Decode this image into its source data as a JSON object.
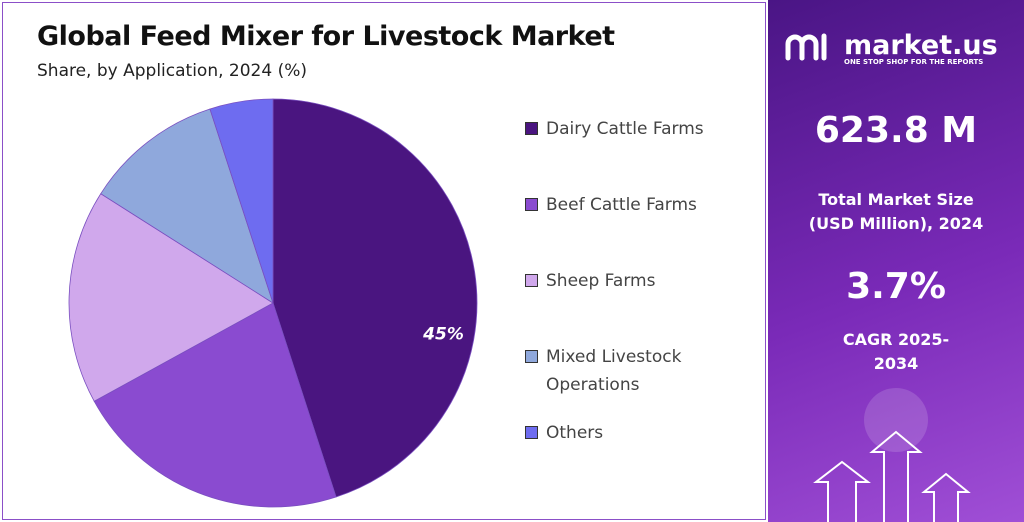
{
  "chart_data": {
    "type": "pie",
    "title": "Global Feed Mixer for Livestock Market",
    "subtitle": "Share, by Application, 2024 (%)",
    "categories": [
      "Dairy Cattle Farms",
      "Beef Cattle Farms",
      "Sheep Farms",
      "Mixed Livestock Operations",
      "Others"
    ],
    "values": [
      45,
      22,
      17,
      11,
      5
    ],
    "value_labels": [
      "45%",
      null,
      null,
      null,
      null
    ],
    "colors": [
      "#4a1580",
      "#8a4bd0",
      "#d0a8ec",
      "#8fa8dc",
      "#6e6cf0"
    ],
    "legend": "right"
  },
  "panel": {
    "brand": "market.us",
    "tagline": "ONE STOP SHOP FOR THE REPORTS",
    "market_size": "623.8 M",
    "market_size_label": "Total Market Size (USD Million), 2024",
    "cagr": "3.7%",
    "cagr_label": "CAGR 2025-2034"
  }
}
